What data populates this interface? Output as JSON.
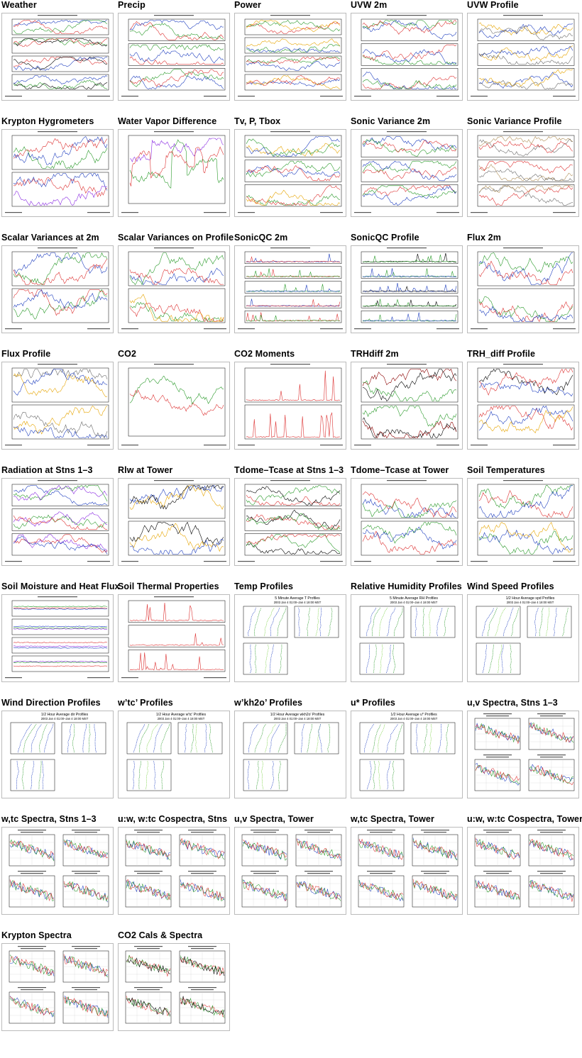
{
  "page": {
    "layout_note_hidden": "",
    "items": [
      {
        "title": "Weather",
        "kind": "multi",
        "panels": 4,
        "colors": [
          "#1f3fbf",
          "#2a9a2a",
          "#d33",
          "#000"
        ]
      },
      {
        "title": "Precip",
        "kind": "multi",
        "panels": 3,
        "colors": [
          "#2a9a2a",
          "#d33",
          "#1f3fbf"
        ]
      },
      {
        "title": "Power",
        "kind": "multi",
        "panels": 4,
        "colors": [
          "#d33",
          "#e6a400",
          "#2a9a2a",
          "#1f3fbf"
        ]
      },
      {
        "title": "UVW 2m",
        "kind": "multi",
        "panels": 3,
        "colors": [
          "#1f3fbf",
          "#2a9a2a",
          "#d33"
        ]
      },
      {
        "title": "UVW Profile",
        "kind": "multi",
        "panels": 3,
        "colors": [
          "#6b6b6b",
          "#e6a400",
          "#1f3fbf"
        ]
      },
      {
        "title": "Krypton Hygrometers",
        "kind": "multi",
        "panels": 2,
        "colors": [
          "#2a9a2a",
          "#d33",
          "#1f3fbf",
          "#8a2be2"
        ]
      },
      {
        "title": "Water Vapor Difference",
        "kind": "single",
        "panels": 1,
        "colors": [
          "#8a2be2",
          "#2a9a2a",
          "#d33"
        ]
      },
      {
        "title": "Tv, P, Tbox",
        "kind": "multi",
        "panels": 3,
        "colors": [
          "#e6a400",
          "#1f3fbf",
          "#2a9a2a",
          "#d33"
        ]
      },
      {
        "title": "Sonic Variance 2m",
        "kind": "multi",
        "panels": 3,
        "colors": [
          "#1f3fbf",
          "#2a9a2a",
          "#d33"
        ]
      },
      {
        "title": "Sonic Variance Profile",
        "kind": "multi",
        "panels": 3,
        "colors": [
          "#6b6b6b",
          "#b0905a",
          "#d33"
        ]
      },
      {
        "title": "Scalar Variances at 2m",
        "kind": "multi",
        "panels": 2,
        "colors": [
          "#1f3fbf",
          "#2a9a2a",
          "#d33"
        ]
      },
      {
        "title": "Scalar Variances on Profile",
        "kind": "multi",
        "panels": 2,
        "colors": [
          "#1f3fbf",
          "#2a9a2a",
          "#d33",
          "#e6a400"
        ]
      },
      {
        "title": "SonicQC 2m",
        "kind": "spikes",
        "panels": 5,
        "colors": [
          "#1f3fbf",
          "#d33",
          "#2a9a2a"
        ]
      },
      {
        "title": "SonicQC Profile",
        "kind": "spikes",
        "panels": 5,
        "colors": [
          "#000",
          "#2a9a2a",
          "#1f3fbf"
        ]
      },
      {
        "title": "Flux 2m",
        "kind": "multi",
        "panels": 2,
        "colors": [
          "#1f3fbf",
          "#2a9a2a",
          "#d33"
        ]
      },
      {
        "title": "Flux Profile",
        "kind": "multi",
        "panels": 2,
        "colors": [
          "#6b6b6b",
          "#e6a400",
          "#1f3fbf"
        ]
      },
      {
        "title": "CO2",
        "kind": "single",
        "panels": 1,
        "colors": [
          "#d33",
          "#2a9a2a"
        ]
      },
      {
        "title": "CO2 Moments",
        "kind": "spikes",
        "panels": 2,
        "colors": [
          "#d33"
        ]
      },
      {
        "title": "TRHdiff 2m",
        "kind": "multi",
        "panels": 2,
        "colors": [
          "#8b0000",
          "#000",
          "#2a9a2a"
        ]
      },
      {
        "title": "TRH_diff Profile",
        "kind": "multi",
        "panels": 2,
        "colors": [
          "#000",
          "#d33",
          "#1f3fbf",
          "#e6a400"
        ]
      },
      {
        "title": "Radiation at Stns 1–3",
        "kind": "multi",
        "panels": 3,
        "colors": [
          "#1f3fbf",
          "#2a9a2a",
          "#8a2be2",
          "#d33"
        ]
      },
      {
        "title": "Rlw at Tower",
        "kind": "multi",
        "panels": 2,
        "colors": [
          "#1f3fbf",
          "#e6a400",
          "#000"
        ]
      },
      {
        "title": "Tdome–Tcase at Stns 1–3",
        "kind": "multi",
        "panels": 3,
        "colors": [
          "#2a9a2a",
          "#d33",
          "#000"
        ]
      },
      {
        "title": "Tdome–Tcase at Tower",
        "kind": "multi",
        "panels": 2,
        "colors": [
          "#1f3fbf",
          "#2a9a2a",
          "#d33"
        ]
      },
      {
        "title": "Soil Temperatures",
        "kind": "multi",
        "panels": 2,
        "colors": [
          "#d33",
          "#2a9a2a",
          "#1f3fbf",
          "#e6a400"
        ]
      },
      {
        "title": "Soil Moisture and Heat Flux",
        "kind": "flat",
        "panels": 4,
        "colors": [
          "#d33",
          "#2a9a2a",
          "#1f3fbf",
          "#8a2be2"
        ]
      },
      {
        "title": "Soil Thermal Properties",
        "kind": "spikes",
        "panels": 3,
        "colors": [
          "#d33"
        ]
      },
      {
        "title": "Temp Profiles",
        "kind": "profiles",
        "panels": 3,
        "colors": [
          "#1f3fbf",
          "#2a9a2a",
          "#7fd34a"
        ],
        "caption": "5 Minute Average T Profiles",
        "caption2": "2003 Jan 4 01:00–Jan 4 18:00 MST"
      },
      {
        "title": "Relative Humidity Profiles",
        "kind": "profiles",
        "panels": 3,
        "colors": [
          "#1f3fbf",
          "#2a9a2a",
          "#7fd34a"
        ],
        "caption": "5 Minute Average RH Profiles",
        "caption2": "2003 Jan 4 01:00–Jan 4 18:00 MST"
      },
      {
        "title": "Wind Speed Profiles",
        "kind": "profiles",
        "panels": 3,
        "colors": [
          "#1f3fbf",
          "#2a9a2a",
          "#7fd34a"
        ],
        "caption": "1/2 Hour Average spd Profiles",
        "caption2": "2003 Jan 4 01:00–Jan 4 18:00 MST"
      },
      {
        "title": "Wind Direction Profiles",
        "kind": "profiles",
        "panels": 3,
        "colors": [
          "#1f3fbf",
          "#2a9a2a"
        ],
        "caption": "1/2 Hour Average dir Profiles",
        "caption2": "2003 Jan 4 01:00–Jan 4 18:00 MST"
      },
      {
        "title": "w’tc’ Profiles",
        "kind": "profiles",
        "panels": 3,
        "colors": [
          "#1f3fbf",
          "#2a9a2a",
          "#7fd34a"
        ],
        "caption": "1/2 Hour Average w'tc' Profiles",
        "caption2": "2003 Jan 4 01:00–Jan 4 18:00 MST"
      },
      {
        "title": "w’kh2o’ Profiles",
        "kind": "profiles",
        "panels": 3,
        "colors": [
          "#1f3fbf",
          "#2a9a2a",
          "#7fd34a"
        ],
        "caption": "1/2 Hour Average wkh2o' Profiles",
        "caption2": "2003 Jan 4 01:00–Jan 4 18:00 MST"
      },
      {
        "title": "u* Profiles",
        "kind": "profiles",
        "panels": 3,
        "colors": [
          "#1f3fbf",
          "#2a9a2a",
          "#7fd34a"
        ],
        "caption": "1/2 Hour Average u* Profiles",
        "caption2": "2003 Jan 4 01:00–Jan 4 18:00 MST"
      },
      {
        "title": "u,v Spectra, Stns 1–3",
        "kind": "spectra",
        "panels": 4,
        "colors": [
          "#1f3fbf",
          "#2a9a2a",
          "#d33",
          "#8a2be2"
        ]
      },
      {
        "title": "w,tc Spectra, Stns 1–3",
        "kind": "spectra",
        "panels": 4,
        "colors": [
          "#1f3fbf",
          "#2a9a2a",
          "#d33"
        ]
      },
      {
        "title": "u:w, w:tc Cospectra, Stns",
        "kind": "spectra",
        "panels": 4,
        "colors": [
          "#1f3fbf",
          "#2a9a2a",
          "#d33",
          "#8a2be2"
        ]
      },
      {
        "title": "u,v Spectra, Tower",
        "kind": "spectra",
        "panels": 4,
        "colors": [
          "#1f3fbf",
          "#2a9a2a",
          "#d33",
          "#e6a400"
        ]
      },
      {
        "title": "w,tc Spectra, Tower",
        "kind": "spectra",
        "panels": 4,
        "colors": [
          "#1f3fbf",
          "#2a9a2a",
          "#d33",
          "#e6a400"
        ]
      },
      {
        "title": "u:w, w:tc Cospectra, Tower",
        "kind": "spectra",
        "panels": 4,
        "colors": [
          "#1f3fbf",
          "#2a9a2a",
          "#d33",
          "#e6a400"
        ]
      },
      {
        "title": "Krypton Spectra",
        "kind": "spectra",
        "panels": 4,
        "colors": [
          "#1f3fbf",
          "#2a9a2a",
          "#d33"
        ]
      },
      {
        "title": "CO2 Cals & Spectra",
        "kind": "spectra",
        "panels": 4,
        "colors": [
          "#d33",
          "#2a9a2a",
          "#000"
        ]
      }
    ]
  }
}
